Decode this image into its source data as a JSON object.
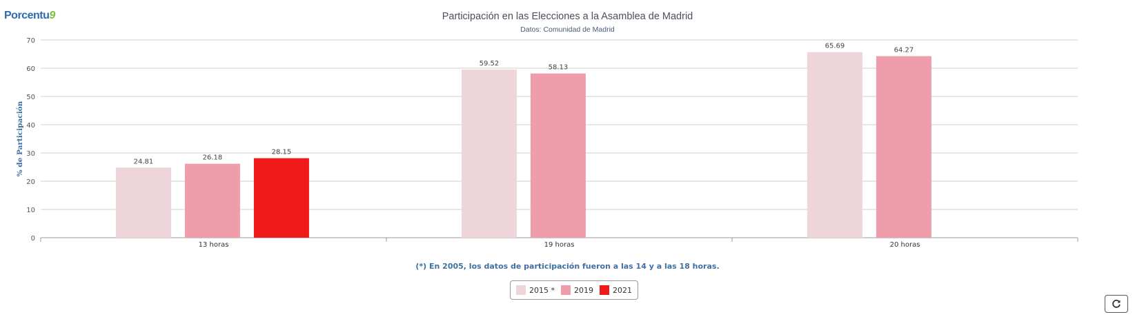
{
  "logo": {
    "text": "Porcentu",
    "accent": "9"
  },
  "chart_data": {
    "type": "bar",
    "title": "Participación en las Elecciones a la Asamblea de Madrid",
    "subtitle": "Datos: Comunidad de Madrid",
    "ylabel": "% de Participación",
    "xlabel": "",
    "ylim": [
      0,
      70
    ],
    "yticks": [
      0,
      10,
      20,
      30,
      40,
      50,
      60,
      70
    ],
    "categories": [
      "13 horas",
      "19 horas",
      "20 horas"
    ],
    "series": [
      {
        "name": "2015 *",
        "color": "#edd5da",
        "values": [
          24.81,
          59.52,
          65.69
        ],
        "labels": [
          "24.81",
          "59.52",
          "65.69"
        ]
      },
      {
        "name": "2019",
        "color": "#f09dab",
        "values": [
          26.18,
          58.13,
          64.27
        ],
        "labels": [
          "26.18",
          "58.13",
          "64.27"
        ]
      },
      {
        "name": "2021",
        "color": "#f01a1a",
        "values": [
          28.15,
          null,
          null
        ],
        "labels": [
          "28.15",
          null,
          null
        ]
      }
    ],
    "grid": true,
    "legend_position": "bottom-center",
    "footnote": "(*) En 2005, los datos de participación fueron a las 14 y a las 18 horas."
  },
  "legend": {
    "items": [
      "2015 *",
      "2019",
      "2021"
    ]
  }
}
